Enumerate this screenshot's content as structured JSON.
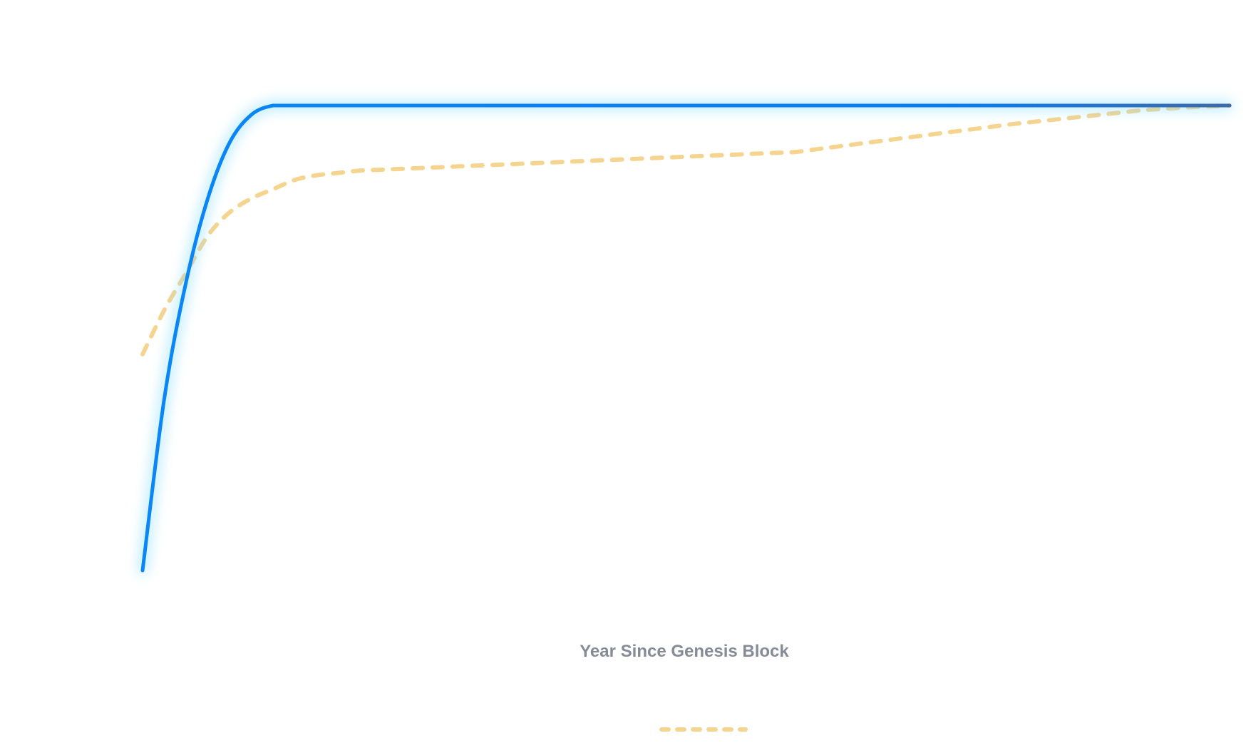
{
  "chart_data": {
    "type": "line",
    "title": "",
    "xlabel": "Year Since Genesis Block",
    "ylabel": "",
    "x": [
      0,
      1,
      2,
      3,
      4,
      5,
      6,
      7,
      8,
      9,
      10,
      11,
      12,
      13,
      14,
      15,
      16,
      17,
      18,
      19,
      20,
      21,
      22,
      23,
      24,
      25,
      26,
      27,
      28,
      29,
      30,
      31,
      32,
      33,
      34,
      35,
      36,
      37,
      38,
      39,
      40,
      41,
      42,
      43,
      44,
      45,
      46,
      47,
      48,
      49,
      50
    ],
    "xlim": [
      0,
      50
    ],
    "ylim": [
      0,
      1
    ],
    "grid": false,
    "legend_position": "bottom",
    "series": [
      {
        "name": "",
        "color": "#0a8cf5",
        "glow_color": "#7fdcff",
        "line_style": "solid",
        "values": [
          0.0,
          0.37,
          0.62,
          0.8,
          0.92,
          0.98,
          1.0,
          1.0,
          1.0,
          1.0,
          1.0,
          1.0,
          1.0,
          1.0,
          1.0,
          1.0,
          1.0,
          1.0,
          1.0,
          1.0,
          1.0,
          1.0,
          1.0,
          1.0,
          1.0,
          1.0,
          1.0,
          1.0,
          1.0,
          1.0,
          1.0,
          1.0,
          1.0,
          1.0,
          1.0,
          1.0,
          1.0,
          1.0,
          1.0,
          1.0,
          1.0,
          1.0,
          1.0,
          1.0,
          1.0,
          1.0,
          1.0,
          1.0,
          1.0,
          1.0,
          1.0
        ]
      },
      {
        "name": "",
        "color": "#f5d48f",
        "line_style": "dashed",
        "values": [
          0.465,
          0.56,
          0.64,
          0.72,
          0.77,
          0.8,
          0.82,
          0.84,
          0.85,
          0.855,
          0.86,
          0.862,
          0.864,
          0.866,
          0.868,
          0.87,
          0.872,
          0.874,
          0.876,
          0.878,
          0.88,
          0.882,
          0.884,
          0.886,
          0.888,
          0.89,
          0.892,
          0.894,
          0.896,
          0.898,
          0.9,
          0.906,
          0.912,
          0.918,
          0.924,
          0.93,
          0.936,
          0.942,
          0.948,
          0.954,
          0.96,
          0.965,
          0.97,
          0.975,
          0.98,
          0.985,
          0.99,
          0.993,
          0.996,
          0.998,
          1.0
        ]
      }
    ]
  }
}
